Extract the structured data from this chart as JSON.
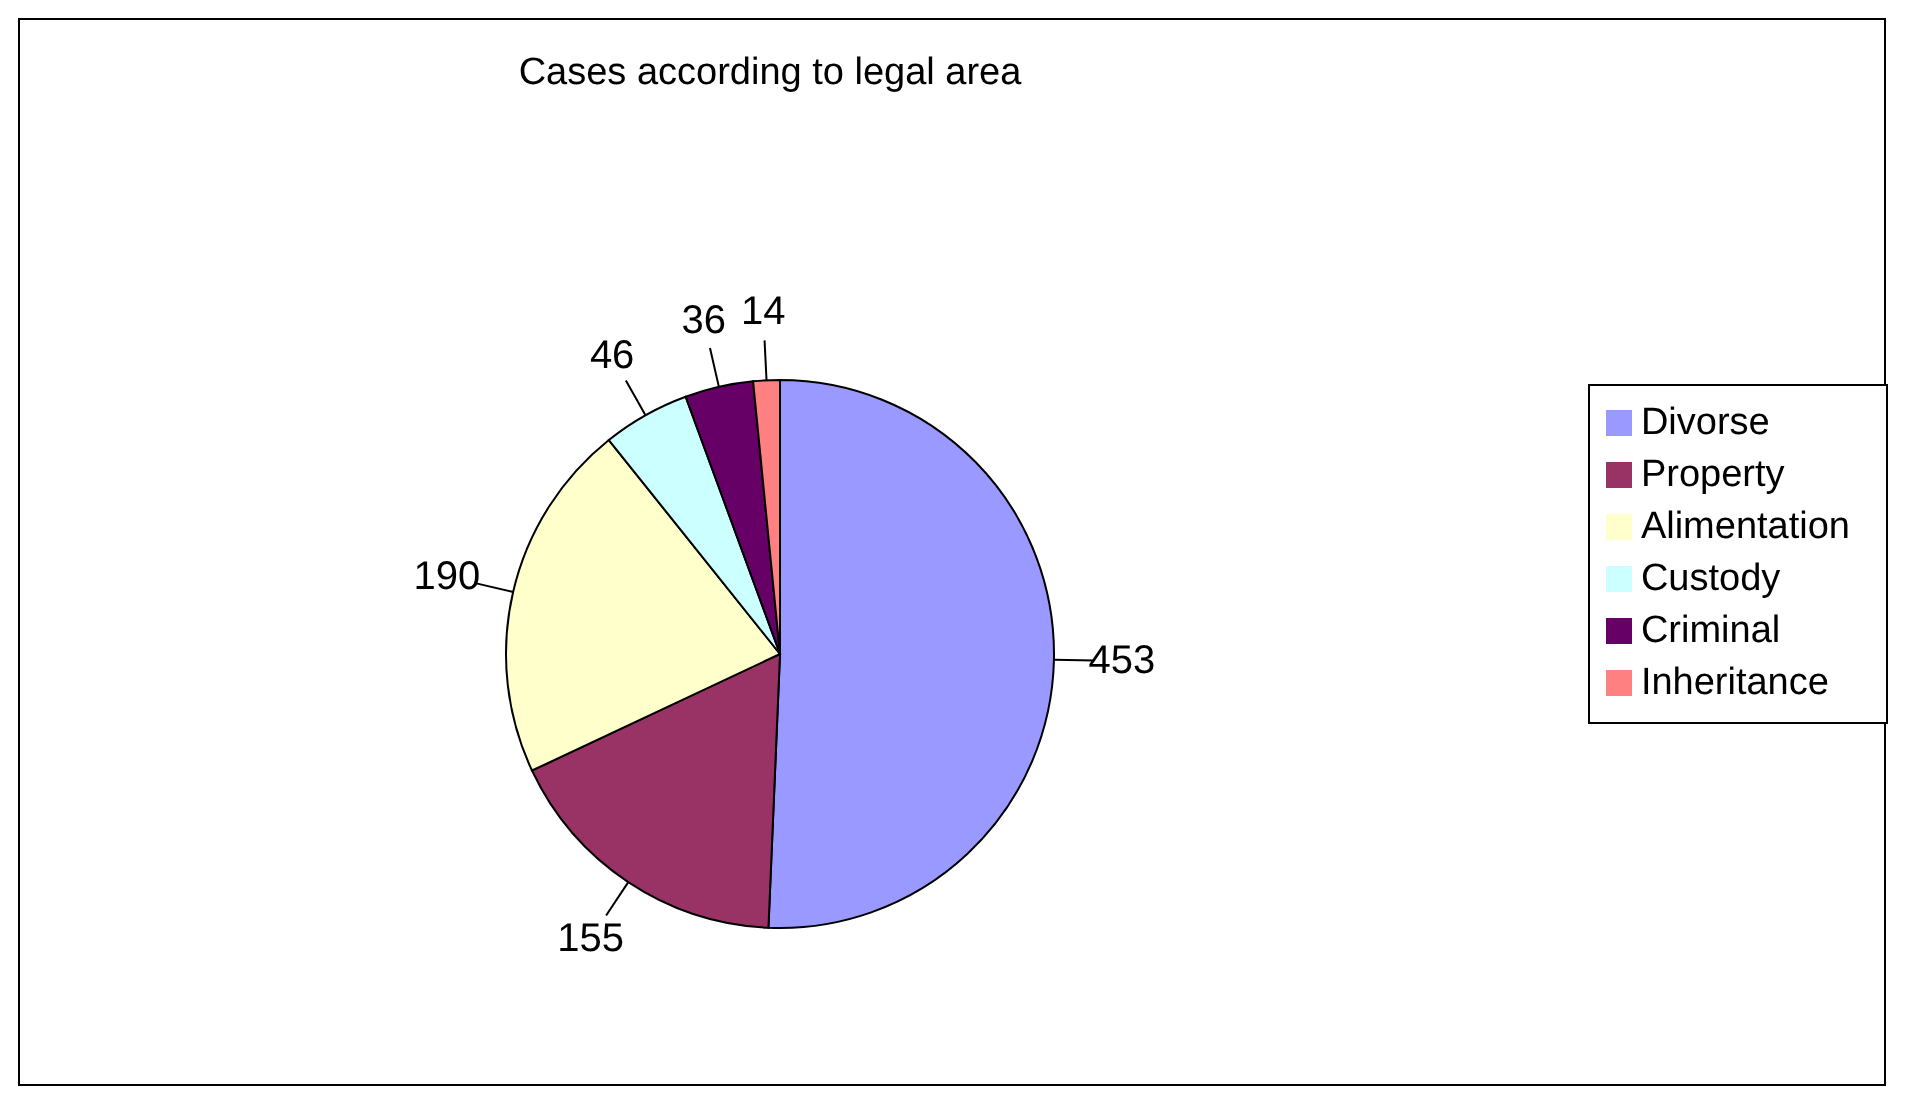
{
  "chart_data": {
    "type": "pie",
    "title": "Cases according to legal area",
    "categories": [
      "Divorse",
      "Property",
      "Alimentation",
      "Custody",
      "Criminal",
      "Inheritance"
    ],
    "values": [
      453,
      155,
      190,
      46,
      36,
      14
    ],
    "colors": [
      "#9999ff",
      "#993366",
      "#ffffcc",
      "#ccffff",
      "#660066",
      "#ff8080"
    ],
    "data_labels": true,
    "legend": "right"
  }
}
